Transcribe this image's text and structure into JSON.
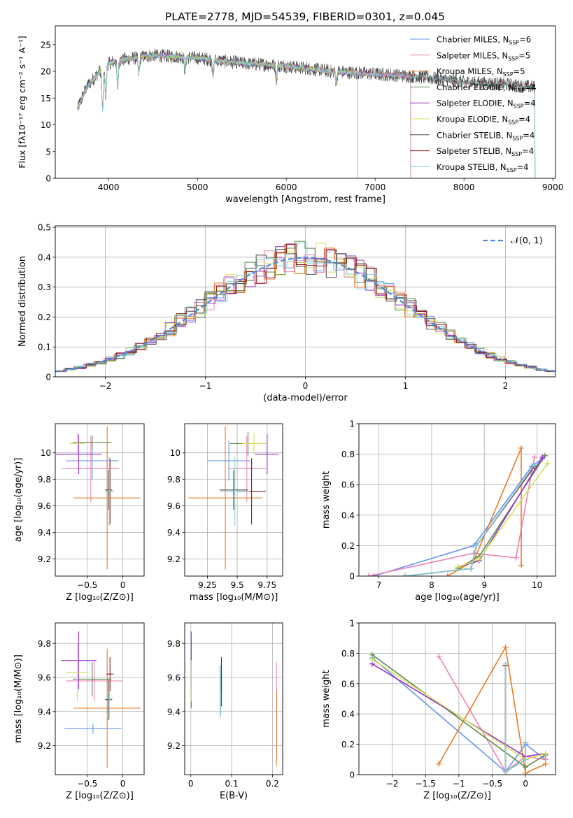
{
  "title": "PLATE=2778, MJD=54539, FIBERID=0301, z=0.045",
  "colors": [
    "#6495ed",
    "#ee82b4",
    "#ee7a22",
    "#5f8a50",
    "#9932cc",
    "#d4e157",
    "#4a4a4a",
    "#8b1a1a",
    "#7fd4d9"
  ],
  "chart_data": [
    {
      "id": "spectrum",
      "type": "line",
      "xlabel": "wavelength [Angstrom, rest frame]",
      "ylabel": "Flux [fλ10⁻¹⁷ erg cm⁻² s⁻¹ A⁻¹]",
      "xlim": [
        3400,
        9030
      ],
      "ylim": [
        0,
        28.5
      ],
      "xticks": [
        4000,
        5000,
        6000,
        7000,
        8000,
        9000
      ],
      "yticks": [
        0,
        5,
        10,
        15,
        20,
        25
      ],
      "grid": false,
      "legend": "top-right",
      "series": [
        {
          "name": "Chabrier MILES, N",
          "sub": "SSP",
          "eq": "=6",
          "xmin": 3650,
          "xmax": 7400
        },
        {
          "name": "Salpeter MILES, N",
          "sub": "SSP",
          "eq": "=5",
          "xmin": 3650,
          "xmax": 7400
        },
        {
          "name": "Kroupa MILES, N",
          "sub": "SSP",
          "eq": "=5",
          "xmin": 3650,
          "xmax": 7400
        },
        {
          "name": "Chabrier ELODIE, N",
          "sub": "SSP",
          "eq": "=4",
          "xmin": 3650,
          "xmax": 6800
        },
        {
          "name": "Salpeter ELODIE, N",
          "sub": "SSP",
          "eq": "=4",
          "xmin": 3650,
          "xmax": 6800
        },
        {
          "name": "Kroupa ELODIE, N",
          "sub": "SSP",
          "eq": "=4",
          "xmin": 3650,
          "xmax": 6800
        },
        {
          "name": "Chabrier STELIB, N",
          "sub": "SSP",
          "eq": "=4",
          "xmin": 3650,
          "xmax": 8800
        },
        {
          "name": "Salpeter STELIB, N",
          "sub": "SSP",
          "eq": "=4",
          "xmin": 3650,
          "xmax": 8800
        },
        {
          "name": "Kroupa STELIB, N",
          "sub": "SSP",
          "eq": "=4",
          "xmin": 3650,
          "xmax": 8800
        }
      ],
      "continuum": [
        [
          3650,
          13
        ],
        [
          3750,
          17
        ],
        [
          3900,
          20
        ],
        [
          4000,
          21.5
        ],
        [
          4100,
          22
        ],
        [
          4300,
          22.5
        ],
        [
          4500,
          23
        ],
        [
          5000,
          22.5
        ],
        [
          5500,
          21.5
        ],
        [
          6000,
          21
        ],
        [
          6500,
          20
        ],
        [
          7000,
          19.5
        ],
        [
          7500,
          19
        ],
        [
          8000,
          18
        ],
        [
          8500,
          17.5
        ],
        [
          8800,
          17
        ]
      ]
    },
    {
      "id": "residuals",
      "type": "line",
      "xlabel": "(data-model)/error",
      "ylabel": "Normed distribution",
      "xlim": [
        -2.5,
        2.5
      ],
      "ylim": [
        0,
        0.505
      ],
      "xticks": [
        -2,
        -1,
        0,
        1,
        2
      ],
      "yticks": [
        0.0,
        0.1,
        0.2,
        0.3,
        0.4,
        0.5
      ],
      "grid": true,
      "legend": "top-right",
      "legend_label": "𝒩(0, 1)",
      "bins": 50,
      "curve": "gaussian(0,1)"
    },
    {
      "id": "age-vs-Z",
      "type": "scatter",
      "xlabel": "Z [log₁₀(Z/Z⊙)]",
      "ylabel": "age  [log₁₀(age/yr)]",
      "xlim": [
        -0.95,
        0.3
      ],
      "ylim": [
        9.07,
        10.22
      ],
      "xticks": [
        -0.5,
        0.0
      ],
      "yticks": [
        9.2,
        9.4,
        9.6,
        9.8,
        10.0
      ],
      "grid": true,
      "points": [
        {
          "x": -0.43,
          "xerr": 0.37,
          "y": 9.94,
          "yerr": 0.14
        },
        {
          "x": -0.45,
          "xerr": 0.4,
          "y": 9.88,
          "yerr": 0.25
        },
        {
          "x": -0.22,
          "xerr": 0.47,
          "y": 9.66,
          "yerr": 0.54
        },
        {
          "x": -0.43,
          "xerr": 0.27,
          "y": 10.08,
          "yerr": 0.05
        },
        {
          "x": -0.62,
          "xerr": 0.32,
          "y": 9.99,
          "yerr": 0.15
        },
        {
          "x": -0.64,
          "xerr": 0.11,
          "y": 10.07,
          "yerr": 0.08
        },
        {
          "x": -0.2,
          "xerr": 0.05,
          "y": 9.72,
          "yerr": 0.15
        },
        {
          "x": -0.18,
          "xerr": 0.05,
          "y": 9.71,
          "yerr": 0.25
        },
        {
          "x": -0.19,
          "xerr": 0.06,
          "y": 9.71,
          "yerr": 0.26
        }
      ]
    },
    {
      "id": "age-vs-mass",
      "type": "scatter",
      "xlabel": "mass [log₁₀(M/M⊙)]",
      "ylabel": "",
      "xlim": [
        9.06,
        9.88
      ],
      "ylim": [
        9.07,
        10.22
      ],
      "xticks": [
        9.25,
        9.5,
        9.75
      ],
      "yticks": [
        9.2,
        9.4,
        9.6,
        9.8,
        10.0
      ],
      "grid": true,
      "points": [
        {
          "x": 9.43,
          "xerr": 0.18,
          "y": 9.94,
          "yerr": 0.15
        },
        {
          "x": 9.58,
          "xerr": 0.16,
          "y": 9.88,
          "yerr": 0.25
        },
        {
          "x": 9.4,
          "xerr": 0.31,
          "y": 9.66,
          "yerr": 0.54
        },
        {
          "x": 9.59,
          "xerr": 0.15,
          "y": 10.07,
          "yerr": 0.09
        },
        {
          "x": 9.75,
          "xerr": 0.1,
          "y": 9.99,
          "yerr": 0.15
        },
        {
          "x": 9.64,
          "xerr": 0.1,
          "y": 10.07,
          "yerr": 0.08
        },
        {
          "x": 9.47,
          "xerr": 0.12,
          "y": 9.72,
          "yerr": 0.15
        },
        {
          "x": 9.62,
          "xerr": 0.12,
          "y": 9.71,
          "yerr": 0.25
        },
        {
          "x": 9.48,
          "xerr": 0.12,
          "y": 9.71,
          "yerr": 0.26
        }
      ]
    },
    {
      "id": "massweight-vs-age",
      "type": "line",
      "xlabel": "age  [log₁₀(age/yr)]",
      "ylabel": "mass weight",
      "xlim": [
        6.62,
        10.35
      ],
      "ylim": [
        0,
        1.0
      ],
      "xticks": [
        7,
        8,
        9,
        10
      ],
      "yticks": [
        0.0,
        0.2,
        0.4,
        0.6,
        0.8,
        1.0
      ],
      "grid": true,
      "series": [
        {
          "x": [
            6.9,
            8.8,
            9.9,
            10.1
          ],
          "y": [
            0.0,
            0.2,
            0.72,
            0.77
          ]
        },
        {
          "x": [
            6.8,
            8.8,
            9.6,
            9.95
          ],
          "y": [
            0.0,
            0.15,
            0.12,
            0.78
          ]
        },
        {
          "x": [
            8.3,
            8.8,
            9.7,
            9.7
          ],
          "y": [
            0.0,
            0.1,
            0.84,
            0.07
          ]
        },
        {
          "x": [
            8.5,
            8.9,
            10.15
          ],
          "y": [
            0.05,
            0.13,
            0.79
          ]
        },
        {
          "x": [
            8.5,
            8.9,
            10.1
          ],
          "y": [
            0.06,
            0.1,
            0.78
          ]
        },
        {
          "x": [
            8.5,
            8.9,
            10.2
          ],
          "y": [
            0.06,
            0.11,
            0.74
          ]
        },
        {
          "x": [
            7.5,
            8.75,
            8.85,
            9.95
          ],
          "y": [
            0.0,
            0.05,
            0.2,
            0.72
          ]
        },
        {
          "x": [
            7.5,
            8.75,
            8.85,
            9.95
          ],
          "y": [
            0.0,
            0.05,
            0.2,
            0.72
          ]
        },
        {
          "x": [
            7.5,
            8.75,
            8.85,
            9.95
          ],
          "y": [
            0.0,
            0.05,
            0.2,
            0.73
          ]
        }
      ]
    },
    {
      "id": "mass-vs-Z",
      "type": "scatter",
      "xlabel": "Z [log₁₀(Z/Z⊙)]",
      "ylabel": "mass [log₁₀(M/M⊙)]",
      "xlim": [
        -0.95,
        0.3
      ],
      "ylim": [
        9.03,
        9.92
      ],
      "xticks": [
        -0.5,
        0.0
      ],
      "yticks": [
        9.2,
        9.4,
        9.6,
        9.8
      ],
      "grid": true,
      "points": [
        {
          "x": -0.42,
          "xerr": 0.4,
          "y": 9.3,
          "yerr": 0.03
        },
        {
          "x": -0.4,
          "xerr": 0.4,
          "y": 9.58,
          "yerr": 0.12
        },
        {
          "x": -0.22,
          "xerr": 0.47,
          "y": 9.42,
          "yerr": 0.35
        },
        {
          "x": -0.43,
          "xerr": 0.27,
          "y": 9.59,
          "yerr": 0.1
        },
        {
          "x": -0.62,
          "xerr": 0.25,
          "y": 9.7,
          "yerr": 0.17
        },
        {
          "x": -0.64,
          "xerr": 0.15,
          "y": 9.63,
          "yerr": 0.17
        },
        {
          "x": -0.2,
          "xerr": 0.05,
          "y": 9.47,
          "yerr": 0.12
        },
        {
          "x": -0.18,
          "xerr": 0.05,
          "y": 9.62,
          "yerr": 0.1
        },
        {
          "x": -0.19,
          "xerr": 0.05,
          "y": 9.48,
          "yerr": 0.12
        }
      ]
    },
    {
      "id": "mass-vs-EBV",
      "type": "scatter",
      "xlabel": "E(B-V)",
      "ylabel": "",
      "xlim": [
        -0.015,
        0.225
      ],
      "ylim": [
        9.03,
        9.92
      ],
      "xticks": [
        0.0,
        0.1,
        0.2
      ],
      "yticks": [
        9.2,
        9.4,
        9.6,
        9.8
      ],
      "grid": true,
      "points": [
        {
          "x": 0.072,
          "xerr": 0,
          "y": 9.52,
          "yerr": 0.15
        },
        {
          "x": 0.21,
          "xerr": 0,
          "y": 9.42,
          "yerr": 0.27
        },
        {
          "x": 0.21,
          "xerr": 0,
          "y": 9.3,
          "yerr": 0.22
        },
        {
          "x": 0.001,
          "xerr": 0,
          "y": 9.62,
          "yerr": 0.2
        },
        {
          "x": 0.001,
          "xerr": 0,
          "y": 9.71,
          "yerr": 0.16
        },
        {
          "x": 0.001,
          "xerr": 0,
          "y": 9.58,
          "yerr": 0.12
        },
        {
          "x": 0.075,
          "xerr": 0,
          "y": 9.56,
          "yerr": 0.13
        },
        {
          "x": 0.075,
          "xerr": 0,
          "y": 9.62,
          "yerr": 0.1
        },
        {
          "x": 0.073,
          "xerr": 0,
          "y": 9.5,
          "yerr": 0.12
        }
      ]
    },
    {
      "id": "massweight-vs-Z",
      "type": "line",
      "xlabel": "Z [log₁₀(Z/Z⊙)]",
      "ylabel": "mass weight",
      "xlim": [
        -2.5,
        0.45
      ],
      "ylim": [
        0,
        1.0
      ],
      "xticks": [
        -2.0,
        -1.5,
        -1.0,
        -0.5,
        0.0
      ],
      "yticks": [
        0.0,
        0.2,
        0.4,
        0.6,
        0.8,
        1.0
      ],
      "grid": true,
      "series": [
        {
          "x": [
            -2.3,
            -0.3,
            0.0,
            0.3
          ],
          "y": [
            0.77,
            0.02,
            0.2,
            0.1
          ]
        },
        {
          "x": [
            -1.3,
            -0.3,
            0.0,
            0.3
          ],
          "y": [
            0.78,
            0.02,
            0.12,
            0.1
          ]
        },
        {
          "x": [
            -1.3,
            -0.3,
            0.0,
            0.3
          ],
          "y": [
            0.07,
            0.84,
            0.01,
            0.07
          ]
        },
        {
          "x": [
            -2.3,
            0.0,
            0.3
          ],
          "y": [
            0.79,
            0.05,
            0.13
          ]
        },
        {
          "x": [
            -2.3,
            0.0,
            0.3
          ],
          "y": [
            0.73,
            0.12,
            0.14
          ]
        },
        {
          "x": [
            -2.3,
            0.0,
            0.3
          ],
          "y": [
            0.76,
            0.1,
            0.14
          ]
        },
        {
          "x": [
            -0.3,
            -0.3,
            0.0,
            0.0
          ],
          "y": [
            0.72,
            0.02,
            0.1,
            0.21
          ]
        },
        {
          "x": [
            -0.3,
            -0.3,
            0.0,
            0.0
          ],
          "y": [
            0.72,
            0.02,
            0.1,
            0.21
          ]
        },
        {
          "x": [
            -0.3,
            -0.3,
            0.0,
            0.0
          ],
          "y": [
            0.73,
            0.02,
            0.1,
            0.21
          ]
        }
      ]
    }
  ]
}
